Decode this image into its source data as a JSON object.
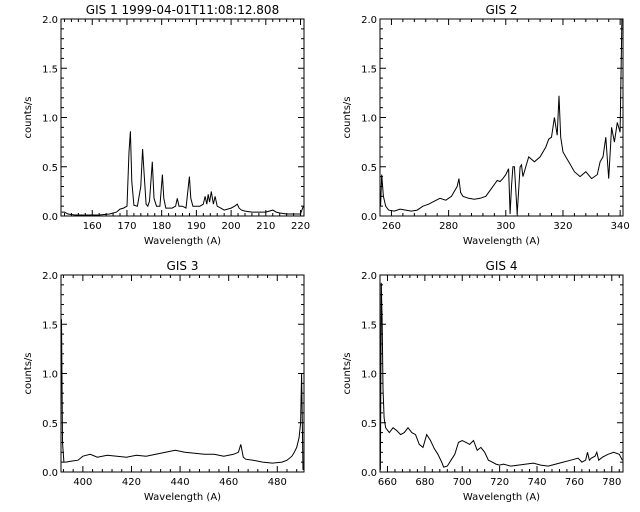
{
  "chart_data": [
    {
      "type": "line",
      "title": "GIS 1 1999-04-01T11:08:12.808",
      "xlabel": "Wavelength (A)",
      "ylabel": "counts/s",
      "xlim": [
        151,
        221
      ],
      "ylim": [
        0.0,
        2.0
      ],
      "xticks": [
        160,
        170,
        180,
        190,
        200,
        210,
        220
      ],
      "yticks": [
        0.0,
        0.5,
        1.0,
        1.5,
        2.0
      ],
      "ytick_labels": [
        "0.0",
        "0.5",
        "1.0",
        "1.5",
        "2.0"
      ],
      "series": [
        {
          "x": [
            151.2,
            152,
            153,
            155,
            157,
            160,
            162,
            165,
            167,
            168,
            169,
            170,
            170.6,
            171.0,
            171.4,
            172,
            173,
            174,
            174.5,
            175.0,
            175.5,
            176,
            176.5,
            177.3,
            177.8,
            178.5,
            179.5,
            180.2,
            180.6,
            181.2,
            182,
            183,
            184,
            184.5,
            185,
            186,
            187,
            188.0,
            188.4,
            189,
            190,
            191,
            192,
            192.5,
            193,
            193.4,
            193.8,
            194.3,
            194.9,
            195.4,
            196,
            197,
            198,
            200,
            201,
            201.8,
            202.3,
            203,
            204,
            206,
            208,
            210,
            212,
            213,
            214,
            216,
            218,
            220,
            220.8
          ],
          "y": [
            0.04,
            0.04,
            0.02,
            0.01,
            0.01,
            0.01,
            0.01,
            0.02,
            0.04,
            0.07,
            0.08,
            0.1,
            0.65,
            0.86,
            0.35,
            0.11,
            0.1,
            0.3,
            0.68,
            0.4,
            0.12,
            0.1,
            0.15,
            0.55,
            0.18,
            0.1,
            0.1,
            0.42,
            0.18,
            0.08,
            0.08,
            0.08,
            0.1,
            0.18,
            0.1,
            0.1,
            0.08,
            0.4,
            0.18,
            0.1,
            0.1,
            0.1,
            0.12,
            0.2,
            0.12,
            0.22,
            0.14,
            0.25,
            0.12,
            0.2,
            0.1,
            0.08,
            0.06,
            0.08,
            0.1,
            0.12,
            0.08,
            0.06,
            0.05,
            0.04,
            0.04,
            0.04,
            0.06,
            0.04,
            0.03,
            0.02,
            0.02,
            0.02,
            0.1
          ]
        }
      ]
    },
    {
      "type": "line",
      "title": "GIS 2",
      "xlabel": "Wavelength (A)",
      "ylabel": "counts/s",
      "xlim": [
        256,
        341
      ],
      "ylim": [
        0.0,
        2.0
      ],
      "xticks": [
        260,
        280,
        300,
        320,
        340
      ],
      "yticks": [
        0.0,
        0.5,
        1.0,
        1.5,
        2.0
      ],
      "ytick_labels": [
        "0.0",
        "0.5",
        "1.0",
        "1.5",
        "2.0"
      ],
      "series": [
        {
          "x": [
            256.2,
            256.6,
            257.2,
            258,
            259,
            261,
            263,
            265,
            267,
            269,
            271,
            273,
            275,
            277,
            279,
            281,
            283,
            283.6,
            284.2,
            285,
            287,
            289,
            291,
            293,
            295,
            297,
            298,
            299,
            300,
            301,
            301.5,
            302,
            302.5,
            303,
            304,
            305,
            305.5,
            306,
            306.5,
            307,
            308,
            310,
            312,
            314,
            315,
            316,
            317,
            318,
            318.6,
            319.2,
            320,
            321,
            322,
            324,
            326,
            328,
            330,
            332,
            333,
            334,
            335,
            336,
            337,
            338,
            339,
            340,
            340.6
          ],
          "y": [
            0.1,
            0.42,
            0.2,
            0.1,
            0.06,
            0.05,
            0.07,
            0.06,
            0.05,
            0.06,
            0.1,
            0.12,
            0.15,
            0.18,
            0.16,
            0.2,
            0.3,
            0.38,
            0.24,
            0.2,
            0.18,
            0.17,
            0.18,
            0.2,
            0.28,
            0.36,
            0.35,
            0.38,
            0.42,
            0.48,
            0.02,
            0.3,
            0.5,
            0.5,
            0.02,
            0.5,
            0.52,
            0.4,
            0.45,
            0.5,
            0.6,
            0.55,
            0.6,
            0.7,
            0.78,
            0.8,
            1.0,
            0.82,
            1.22,
            0.8,
            0.65,
            0.6,
            0.55,
            0.45,
            0.4,
            0.45,
            0.38,
            0.42,
            0.55,
            0.6,
            0.8,
            0.38,
            0.9,
            0.75,
            0.95,
            0.85,
            2.0
          ]
        }
      ]
    },
    {
      "type": "line",
      "title": "GIS 3",
      "xlabel": "Wavelength (A)",
      "ylabel": "counts/s",
      "xlim": [
        391,
        491
      ],
      "ylim": [
        0.0,
        2.0
      ],
      "xticks": [
        400,
        420,
        440,
        460,
        480
      ],
      "yticks": [
        0.0,
        0.5,
        1.0,
        1.5,
        2.0
      ],
      "ytick_labels": [
        "0.0",
        "0.5",
        "1.0",
        "1.5",
        "2.0"
      ],
      "series": [
        {
          "x": [
            391.2,
            391.6,
            392.2,
            393,
            395,
            398,
            400,
            403,
            406,
            410,
            414,
            418,
            422,
            426,
            430,
            434,
            438,
            442,
            446,
            450,
            454,
            458,
            462,
            464,
            465,
            466,
            467,
            470,
            474,
            478,
            482,
            484,
            486,
            487,
            488,
            489,
            489.6,
            490,
            490.6
          ],
          "y": [
            1.55,
            0.3,
            0.1,
            0.1,
            0.11,
            0.12,
            0.16,
            0.18,
            0.15,
            0.17,
            0.16,
            0.15,
            0.17,
            0.16,
            0.18,
            0.2,
            0.22,
            0.2,
            0.19,
            0.18,
            0.18,
            0.16,
            0.18,
            0.2,
            0.28,
            0.15,
            0.13,
            0.12,
            0.1,
            0.09,
            0.1,
            0.12,
            0.16,
            0.2,
            0.25,
            0.35,
            0.5,
            1.0,
            0.02
          ]
        }
      ]
    },
    {
      "type": "line",
      "title": "GIS 4",
      "xlabel": "Wavelength (A)",
      "ylabel": "counts/s",
      "xlim": [
        656,
        786
      ],
      "ylim": [
        0.0,
        2.0
      ],
      "xticks": [
        660,
        680,
        700,
        720,
        740,
        760,
        780
      ],
      "yticks": [
        0.0,
        0.5,
        1.0,
        1.5,
        2.0
      ],
      "ytick_labels": [
        "0.0",
        "0.5",
        "1.0",
        "1.5",
        "2.0"
      ],
      "series": [
        {
          "x": [
            656.2,
            656.7,
            657.2,
            657.6,
            658.2,
            659,
            661,
            663,
            665,
            667,
            669,
            671,
            673,
            675,
            677,
            679,
            681,
            683,
            685,
            687,
            689,
            690,
            692,
            694,
            696,
            698,
            700,
            702,
            704,
            706,
            708,
            710,
            712,
            714,
            716,
            718,
            720,
            722,
            726,
            730,
            734,
            738,
            742,
            746,
            750,
            754,
            758,
            762,
            764,
            766,
            767,
            768,
            769,
            771,
            772,
            773,
            775,
            778,
            781,
            784,
            785.6
          ],
          "y": [
            0.02,
            1.92,
            1.5,
            0.85,
            0.55,
            0.45,
            0.4,
            0.45,
            0.42,
            0.38,
            0.4,
            0.45,
            0.4,
            0.38,
            0.28,
            0.25,
            0.38,
            0.32,
            0.24,
            0.18,
            0.1,
            0.05,
            0.06,
            0.12,
            0.18,
            0.3,
            0.32,
            0.3,
            0.28,
            0.32,
            0.22,
            0.25,
            0.2,
            0.12,
            0.1,
            0.08,
            0.07,
            0.08,
            0.06,
            0.07,
            0.08,
            0.09,
            0.07,
            0.06,
            0.08,
            0.1,
            0.12,
            0.14,
            0.1,
            0.12,
            0.2,
            0.12,
            0.14,
            0.16,
            0.2,
            0.12,
            0.15,
            0.18,
            0.2,
            0.18,
            0.12
          ]
        }
      ]
    }
  ]
}
